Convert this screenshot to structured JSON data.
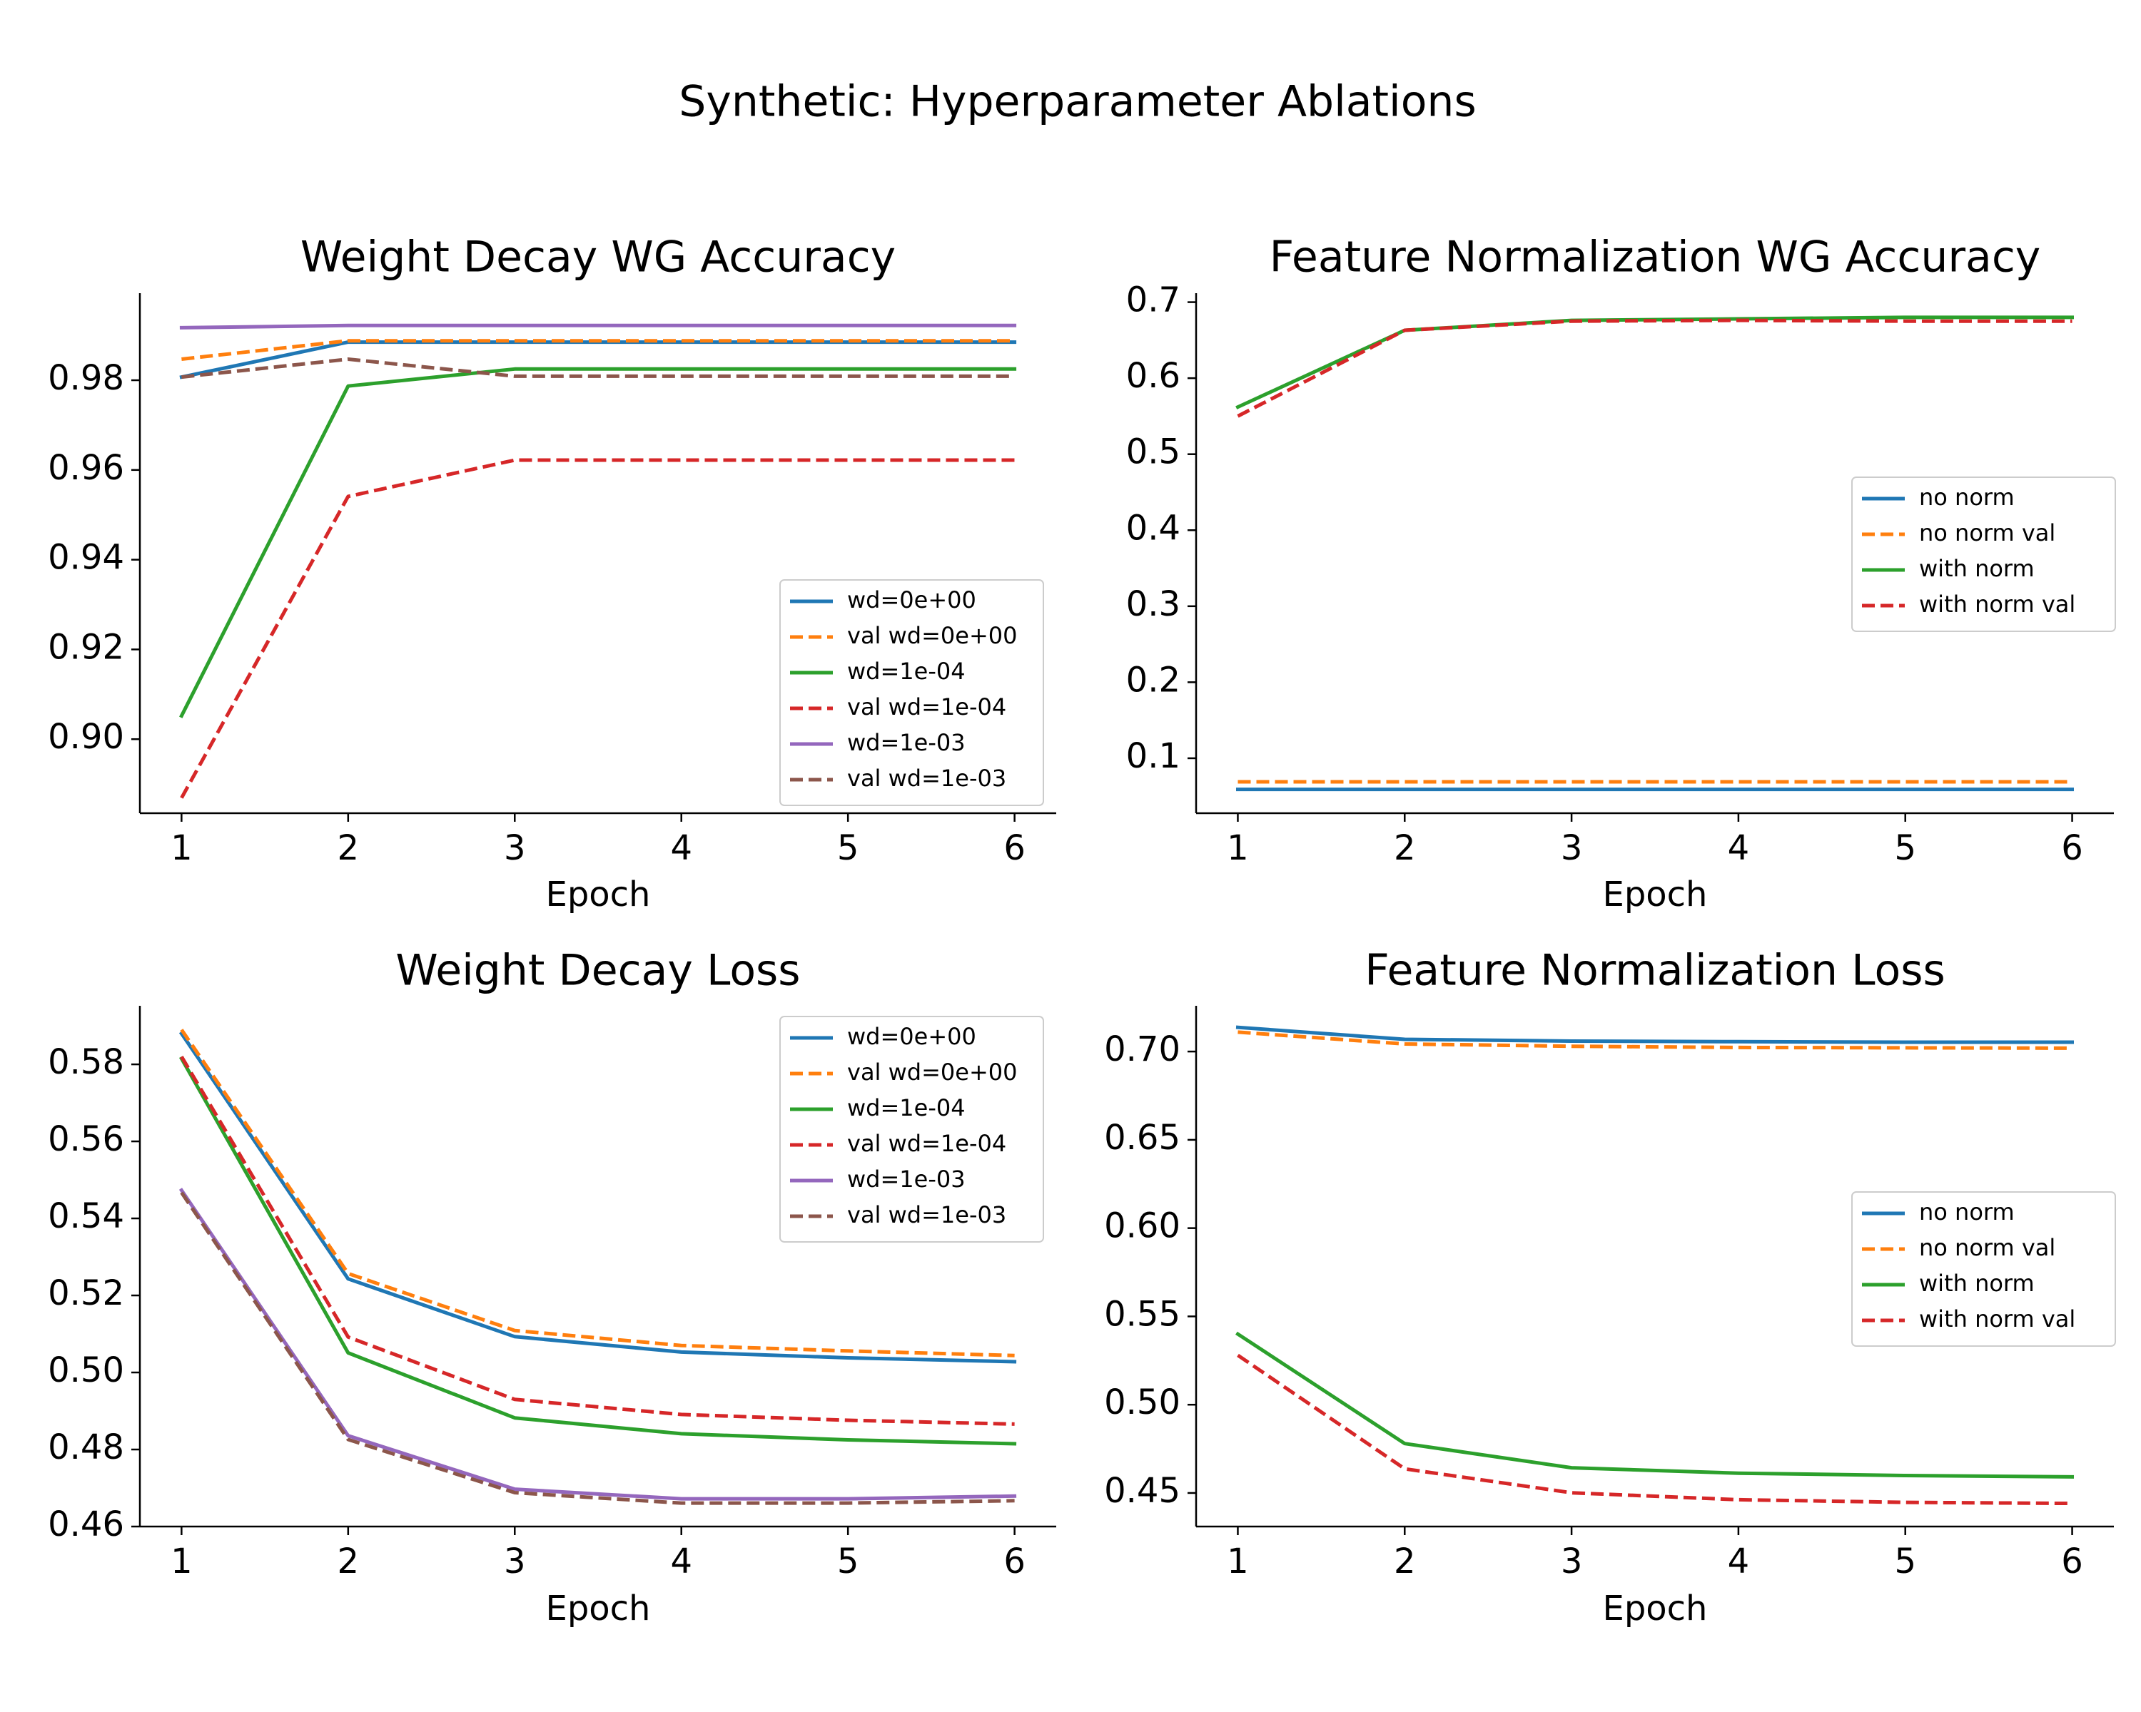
{
  "figure": {
    "suptitle": "Synthetic: Hyperparameter Ablations"
  },
  "colors": {
    "blue": "#1f77b4",
    "orange": "#ff7f0e",
    "green": "#2ca02c",
    "red": "#d62728",
    "purple": "#9467bd",
    "brown": "#8c564b"
  },
  "chart_data": [
    {
      "id": "wd-acc",
      "type": "line",
      "title": "Weight Decay WG Accuracy",
      "xlabel": "Epoch",
      "ylabel": "",
      "x": [
        1,
        2,
        3,
        4,
        5,
        6
      ],
      "xlim": [
        0.75,
        6.25
      ],
      "ylim": [
        0.8835,
        0.9994
      ],
      "xticks": [
        1,
        2,
        3,
        4,
        5,
        6
      ],
      "yticks": [
        0.9,
        0.92,
        0.94,
        0.96,
        0.98
      ],
      "ytick_decimals": 2,
      "legend_position": "lower right",
      "series": [
        {
          "name": "wd=0e+00",
          "color": "#1f77b4",
          "dashed": false,
          "values": [
            0.9807,
            0.9885,
            0.9885,
            0.9885,
            0.9885,
            0.9885
          ]
        },
        {
          "name": "val wd=0e+00",
          "color": "#ff7f0e",
          "dashed": true,
          "values": [
            0.9847,
            0.9888,
            0.9888,
            0.9888,
            0.9888,
            0.9888
          ]
        },
        {
          "name": "wd=1e-04",
          "color": "#2ca02c",
          "dashed": false,
          "values": [
            0.9052,
            0.9787,
            0.9825,
            0.9825,
            0.9825,
            0.9825
          ]
        },
        {
          "name": "val wd=1e-04",
          "color": "#d62728",
          "dashed": true,
          "values": [
            0.8869,
            0.9541,
            0.9622,
            0.9622,
            0.9622,
            0.9622
          ]
        },
        {
          "name": "wd=1e-03",
          "color": "#9467bd",
          "dashed": false,
          "values": [
            0.9917,
            0.9922,
            0.9922,
            0.9922,
            0.9922,
            0.9922
          ]
        },
        {
          "name": "val wd=1e-03",
          "color": "#8c564b",
          "dashed": true,
          "values": [
            0.9807,
            0.9847,
            0.9809,
            0.9809,
            0.9809,
            0.9809
          ]
        }
      ]
    },
    {
      "id": "fn-acc",
      "type": "line",
      "title": "Feature Normalization WG Accuracy",
      "xlabel": "Epoch",
      "ylabel": "",
      "x": [
        1,
        2,
        3,
        4,
        5,
        6
      ],
      "xlim": [
        0.75,
        6.25
      ],
      "ylim": [
        0.0277,
        0.7118
      ],
      "xticks": [
        1,
        2,
        3,
        4,
        5,
        6
      ],
      "yticks": [
        0.1,
        0.2,
        0.3,
        0.4,
        0.5,
        0.6,
        0.7
      ],
      "ytick_decimals": 1,
      "legend_position": "center right",
      "series": [
        {
          "name": "no norm",
          "color": "#1f77b4",
          "dashed": false,
          "values": [
            0.059,
            0.059,
            0.059,
            0.059,
            0.059,
            0.059
          ]
        },
        {
          "name": "no norm val",
          "color": "#ff7f0e",
          "dashed": true,
          "values": [
            0.069,
            0.069,
            0.069,
            0.069,
            0.069,
            0.069
          ]
        },
        {
          "name": "with norm",
          "color": "#2ca02c",
          "dashed": false,
          "values": [
            0.562,
            0.663,
            0.676,
            0.678,
            0.68,
            0.68
          ]
        },
        {
          "name": "with norm val",
          "color": "#d62728",
          "dashed": true,
          "values": [
            0.55,
            0.663,
            0.675,
            0.676,
            0.675,
            0.675
          ]
        }
      ]
    },
    {
      "id": "wd-loss",
      "type": "line",
      "title": "Weight Decay Loss",
      "xlabel": "Epoch",
      "ylabel": "",
      "x": [
        1,
        2,
        3,
        4,
        5,
        6
      ],
      "xlim": [
        0.75,
        6.25
      ],
      "ylim": [
        0.46,
        0.5952
      ],
      "xticks": [
        1,
        2,
        3,
        4,
        5,
        6
      ],
      "yticks": [
        0.46,
        0.48,
        0.5,
        0.52,
        0.54,
        0.56,
        0.58
      ],
      "ytick_decimals": 2,
      "legend_position": "upper right",
      "series": [
        {
          "name": "wd=0e+00",
          "color": "#1f77b4",
          "dashed": false,
          "values": [
            0.588,
            0.5243,
            0.5093,
            0.5053,
            0.5038,
            0.5028
          ]
        },
        {
          "name": "val wd=0e+00",
          "color": "#ff7f0e",
          "dashed": true,
          "values": [
            0.589,
            0.5257,
            0.5109,
            0.507,
            0.5056,
            0.5044
          ]
        },
        {
          "name": "wd=1e-04",
          "color": "#2ca02c",
          "dashed": false,
          "values": [
            0.5815,
            0.5051,
            0.4882,
            0.4841,
            0.4825,
            0.4815
          ]
        },
        {
          "name": "val wd=1e-04",
          "color": "#d62728",
          "dashed": true,
          "values": [
            0.582,
            0.5092,
            0.493,
            0.4891,
            0.4876,
            0.4866
          ]
        },
        {
          "name": "wd=1e-03",
          "color": "#9467bd",
          "dashed": false,
          "values": [
            0.5473,
            0.4836,
            0.4697,
            0.4672,
            0.4672,
            0.4679
          ]
        },
        {
          "name": "val wd=1e-03",
          "color": "#8c564b",
          "dashed": true,
          "values": [
            0.5467,
            0.4826,
            0.4688,
            0.4661,
            0.4661,
            0.4667
          ]
        }
      ]
    },
    {
      "id": "fn-loss",
      "type": "line",
      "title": "Feature Normalization Loss",
      "xlabel": "Epoch",
      "ylabel": "",
      "x": [
        1,
        2,
        3,
        4,
        5,
        6
      ],
      "xlim": [
        0.75,
        6.25
      ],
      "ylim": [
        0.431,
        0.7259
      ],
      "xticks": [
        1,
        2,
        3,
        4,
        5,
        6
      ],
      "yticks": [
        0.45,
        0.5,
        0.55,
        0.6,
        0.65,
        0.7
      ],
      "ytick_decimals": 2,
      "legend_position": "center right",
      "series": [
        {
          "name": "no norm",
          "color": "#1f77b4",
          "dashed": false,
          "values": [
            0.7137,
            0.7069,
            0.7059,
            0.7056,
            0.7053,
            0.7053
          ]
        },
        {
          "name": "no norm val",
          "color": "#ff7f0e",
          "dashed": true,
          "values": [
            0.711,
            0.7043,
            0.703,
            0.7023,
            0.7021,
            0.7019
          ]
        },
        {
          "name": "with norm",
          "color": "#2ca02c",
          "dashed": false,
          "values": [
            0.54,
            0.478,
            0.4643,
            0.4612,
            0.4599,
            0.4591
          ]
        },
        {
          "name": "with norm val",
          "color": "#d62728",
          "dashed": true,
          "values": [
            0.528,
            0.4637,
            0.4501,
            0.4462,
            0.4447,
            0.4441
          ]
        }
      ]
    }
  ]
}
